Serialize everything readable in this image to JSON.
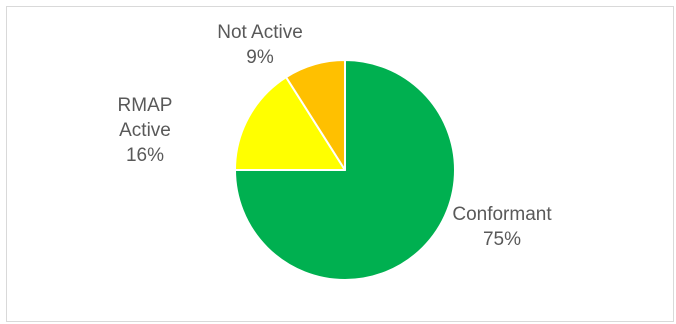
{
  "chart_data": {
    "type": "pie",
    "title": "",
    "start_angle_deg": 0,
    "direction": "clockwise",
    "slices": [
      {
        "label": "Conformant",
        "value": 75,
        "value_label": "75%",
        "color": "#00b050"
      },
      {
        "label": "RMAP Active",
        "value": 16,
        "value_label": "16%",
        "color": "#ffff00"
      },
      {
        "label": "Not Active",
        "value": 9,
        "value_label": "9%",
        "color": "#ffc000"
      }
    ],
    "legend": "none",
    "slice_border_color": "#ffffff"
  }
}
